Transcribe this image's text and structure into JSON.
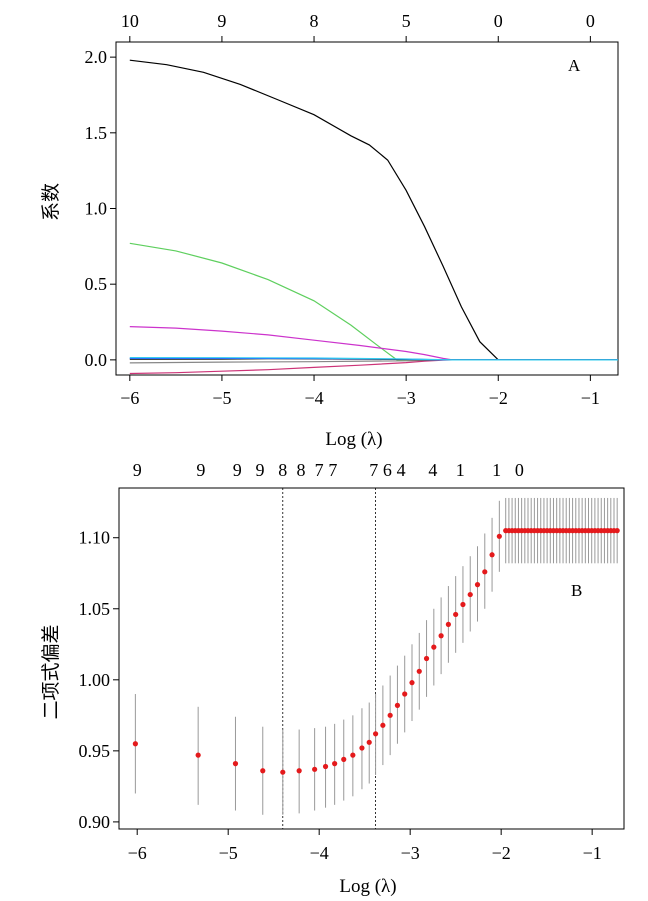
{
  "chart_data": [
    {
      "panel": "A",
      "type": "line",
      "xlabel": "Log (λ)",
      "ylabel": "系数",
      "xlim": [
        -6.15,
        -0.7
      ],
      "ylim": [
        -0.1,
        2.1
      ],
      "xticks": [
        -6,
        -5,
        -4,
        -3,
        -2,
        -1
      ],
      "xtick_labels": [
        "−6",
        "−5",
        "−4",
        "−3",
        "−2",
        "−1"
      ],
      "yticks": [
        0.0,
        0.5,
        1.0,
        1.5,
        2.0
      ],
      "ytick_labels": [
        "0.0",
        "0.5",
        "1.0",
        "1.5",
        "2.0"
      ],
      "top_axis": {
        "positions": [
          -6,
          -5,
          -4,
          -3,
          -2,
          -1
        ],
        "labels": [
          "10",
          "9",
          "8",
          "5",
          "0",
          "0"
        ]
      },
      "grid": false,
      "series": [
        {
          "color": "#000000",
          "x": [
            -6.0,
            -5.6,
            -5.2,
            -4.8,
            -4.4,
            -4.0,
            -3.6,
            -3.4,
            -3.2,
            -3.0,
            -2.8,
            -2.6,
            -2.4,
            -2.2,
            -2.0,
            -1.5,
            -0.7
          ],
          "y": [
            1.98,
            1.95,
            1.9,
            1.82,
            1.72,
            1.62,
            1.48,
            1.42,
            1.32,
            1.12,
            0.88,
            0.62,
            0.35,
            0.12,
            0.0,
            0.0,
            0.0
          ]
        },
        {
          "color": "#5ecf5e",
          "x": [
            -6.0,
            -5.5,
            -5.0,
            -4.5,
            -4.0,
            -3.6,
            -3.3,
            -3.1,
            -2.8,
            -2.0,
            -0.7
          ],
          "y": [
            0.77,
            0.72,
            0.64,
            0.53,
            0.39,
            0.23,
            0.09,
            0.0,
            0.0,
            0.0,
            0.0
          ]
        },
        {
          "color": "#cc33cc",
          "x": [
            -6.0,
            -5.5,
            -5.0,
            -4.5,
            -4.0,
            -3.5,
            -3.0,
            -2.8,
            -2.6,
            -2.5,
            -2.0,
            -0.7
          ],
          "y": [
            0.22,
            0.21,
            0.19,
            0.165,
            0.13,
            0.095,
            0.055,
            0.035,
            0.01,
            0.0,
            0.0,
            0.0
          ]
        },
        {
          "color": "#cc3377",
          "x": [
            -6.0,
            -5.5,
            -5.0,
            -4.5,
            -4.0,
            -3.5,
            -3.0,
            -2.8,
            -2.6,
            -2.5,
            -2.0,
            -0.7
          ],
          "y": [
            -0.09,
            -0.085,
            -0.075,
            -0.065,
            -0.05,
            -0.035,
            -0.018,
            -0.008,
            -0.002,
            0.0,
            0.0,
            0.0
          ]
        },
        {
          "color": "#888888",
          "x": [
            -6.0,
            -5.0,
            -4.0,
            -3.0,
            -2.6,
            -0.7
          ],
          "y": [
            -0.02,
            -0.015,
            -0.012,
            -0.006,
            0.0,
            0.0
          ]
        },
        {
          "color": "#000000",
          "x": [
            -6.0,
            -5.0,
            -4.5,
            -4.0,
            -3.0,
            -2.6,
            -0.7
          ],
          "y": [
            0.005,
            0.006,
            0.008,
            0.007,
            0.003,
            0.0,
            0.0
          ]
        },
        {
          "color": "#2255ff",
          "x": [
            -6.0,
            -5.0,
            -4.0,
            -3.0,
            -2.6,
            -0.7
          ],
          "y": [
            0.01,
            0.01,
            0.009,
            0.005,
            0.0,
            0.0
          ]
        },
        {
          "color": "#33ccee",
          "x": [
            -6.0,
            -5.0,
            -4.0,
            -3.0,
            -2.5,
            -0.7
          ],
          "y": [
            0.015,
            0.014,
            0.012,
            0.006,
            0.0,
            0.0
          ]
        }
      ]
    },
    {
      "panel": "B",
      "type": "scatter",
      "xlabel": "Log (λ)",
      "ylabel": "二项式偏差",
      "xlim": [
        -6.2,
        -0.65
      ],
      "ylim": [
        0.895,
        1.135
      ],
      "xticks": [
        -6,
        -5,
        -4,
        -3,
        -2,
        -1
      ],
      "xtick_labels": [
        "−6",
        "−5",
        "−4",
        "−3",
        "−2",
        "−1"
      ],
      "yticks": [
        0.9,
        0.95,
        1.0,
        1.05,
        1.1
      ],
      "ytick_labels": [
        "0.90",
        "0.95",
        "1.00",
        "1.05",
        "1.10"
      ],
      "top_axis": {
        "positions": [
          -6.0,
          -5.3,
          -4.9,
          -4.65,
          -4.4,
          -4.2,
          -4.0,
          -3.85,
          -3.4,
          -3.25,
          -3.1,
          -2.75,
          -2.45,
          -2.05,
          -1.8
        ],
        "labels": [
          "9",
          "9",
          "9",
          "9",
          "8",
          "8",
          "7",
          "7",
          "7",
          "6",
          "4",
          "4",
          "1",
          "1",
          "0"
        ]
      },
      "vlines": [
        -4.4,
        -3.38
      ],
      "point_color": "#e41a1c",
      "errorbar_color": "#999999",
      "points": [
        {
          "x": -6.02,
          "y": 0.955,
          "lo": 0.92,
          "hi": 0.99
        },
        {
          "x": -5.33,
          "y": 0.947,
          "lo": 0.912,
          "hi": 0.981
        },
        {
          "x": -4.92,
          "y": 0.941,
          "lo": 0.908,
          "hi": 0.974
        },
        {
          "x": -4.62,
          "y": 0.936,
          "lo": 0.905,
          "hi": 0.967
        },
        {
          "x": -4.4,
          "y": 0.935,
          "lo": 0.905,
          "hi": 0.965
        },
        {
          "x": -4.22,
          "y": 0.936,
          "lo": 0.906,
          "hi": 0.965
        },
        {
          "x": -4.05,
          "y": 0.937,
          "lo": 0.908,
          "hi": 0.966
        },
        {
          "x": -3.93,
          "y": 0.939,
          "lo": 0.91,
          "hi": 0.967
        },
        {
          "x": -3.83,
          "y": 0.941,
          "lo": 0.912,
          "hi": 0.969
        },
        {
          "x": -3.73,
          "y": 0.944,
          "lo": 0.915,
          "hi": 0.972
        },
        {
          "x": -3.63,
          "y": 0.947,
          "lo": 0.918,
          "hi": 0.975
        },
        {
          "x": -3.53,
          "y": 0.952,
          "lo": 0.923,
          "hi": 0.98
        },
        {
          "x": -3.45,
          "y": 0.956,
          "lo": 0.927,
          "hi": 0.984
        },
        {
          "x": -3.38,
          "y": 0.962,
          "lo": 0.933,
          "hi": 0.99
        },
        {
          "x": -3.3,
          "y": 0.968,
          "lo": 0.94,
          "hi": 0.996
        },
        {
          "x": -3.22,
          "y": 0.975,
          "lo": 0.947,
          "hi": 1.003
        },
        {
          "x": -3.14,
          "y": 0.982,
          "lo": 0.955,
          "hi": 1.01
        },
        {
          "x": -3.06,
          "y": 0.99,
          "lo": 0.963,
          "hi": 1.017
        },
        {
          "x": -2.98,
          "y": 0.998,
          "lo": 0.971,
          "hi": 1.025
        },
        {
          "x": -2.9,
          "y": 1.006,
          "lo": 0.979,
          "hi": 1.033
        },
        {
          "x": -2.82,
          "y": 1.015,
          "lo": 0.988,
          "hi": 1.042
        },
        {
          "x": -2.74,
          "y": 1.023,
          "lo": 0.996,
          "hi": 1.05
        },
        {
          "x": -2.66,
          "y": 1.031,
          "lo": 1.004,
          "hi": 1.058
        },
        {
          "x": -2.58,
          "y": 1.039,
          "lo": 1.012,
          "hi": 1.066
        },
        {
          "x": -2.5,
          "y": 1.046,
          "lo": 1.019,
          "hi": 1.073
        },
        {
          "x": -2.42,
          "y": 1.053,
          "lo": 1.026,
          "hi": 1.08
        },
        {
          "x": -2.34,
          "y": 1.06,
          "lo": 1.034,
          "hi": 1.087
        },
        {
          "x": -2.26,
          "y": 1.067,
          "lo": 1.041,
          "hi": 1.094
        },
        {
          "x": -2.18,
          "y": 1.076,
          "lo": 1.05,
          "hi": 1.103
        },
        {
          "x": -2.1,
          "y": 1.088,
          "lo": 1.062,
          "hi": 1.114
        },
        {
          "x": -2.02,
          "y": 1.101,
          "lo": 1.076,
          "hi": 1.126
        },
        {
          "x": -1.95,
          "y": 1.105,
          "lo": 1.082,
          "hi": 1.128
        }
      ],
      "plateau": {
        "x_start": -1.95,
        "x_end": -0.72,
        "step": 0.035,
        "y": 1.105,
        "lo": 1.082,
        "hi": 1.128
      }
    }
  ],
  "panel_labels": {
    "a": "A",
    "b": "B"
  }
}
